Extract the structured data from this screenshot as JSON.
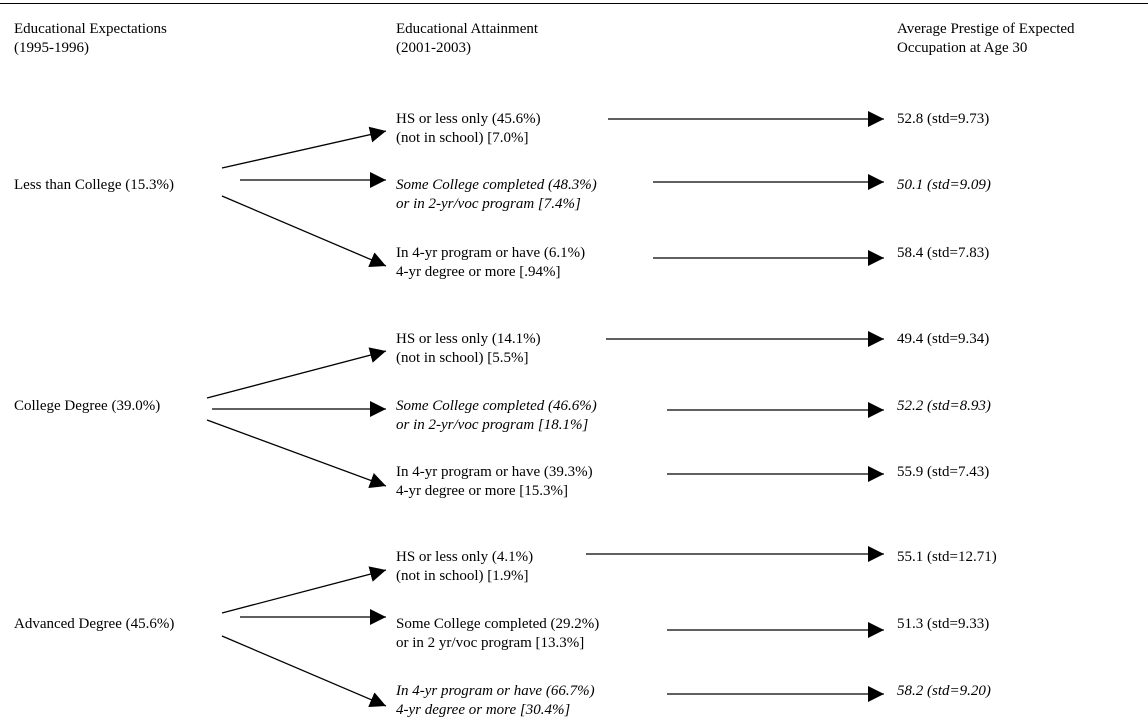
{
  "headers": {
    "col1": [
      "Educational Expectations",
      "(1995-1996)"
    ],
    "col2": [
      "Educational Attainment",
      "(2001-2003)"
    ],
    "col3": [
      "Average Prestige of Expected",
      "Occupation at Age 30"
    ]
  },
  "groups": [
    {
      "label": "Less than College (15.3%)",
      "branches": [
        {
          "line1": "HS or less only  (45.6%)",
          "line2": "(not in school)  [7.0%]",
          "result": "52.8 (std=9.73)",
          "italic": false
        },
        {
          "line1": "Some College completed (48.3%)",
          "line2": "or in 2-yr/voc program [7.4%]",
          "result": "50.1 (std=9.09)",
          "italic": true
        },
        {
          "line1": "In 4-yr program or have (6.1%)",
          "line2": "4-yr degree or more [.94%]",
          "result": "58.4 (std=7.83)",
          "italic": false
        }
      ]
    },
    {
      "label": "College Degree (39.0%)",
      "branches": [
        {
          "line1": "HS or less only  (14.1%)",
          "line2": "(not in school)  [5.5%]",
          "result": "49.4 (std=9.34)",
          "italic": false
        },
        {
          "line1": "Some College completed (46.6%)",
          "line2": "or in 2-yr/voc program [18.1%]",
          "result": "52.2 (std=8.93)",
          "italic": true
        },
        {
          "line1": "In 4-yr program or have (39.3%)",
          "line2": "4-yr degree or more [15.3%]",
          "result": "55.9 (std=7.43)",
          "italic": false
        }
      ]
    },
    {
      "label": "Advanced Degree (45.6%)",
      "branches": [
        {
          "line1": "HS or less only (4.1%)",
          "line2": "(not in school)  [1.9%]",
          "result": "55.1 (std=12.71)",
          "italic": false
        },
        {
          "line1": "Some College completed (29.2%)",
          "line2": "or in 2 yr/voc program [13.3%]",
          "result": "51.3 (std=9.33)",
          "italic": false
        },
        {
          "line1": "In 4-yr program or have (66.7%)",
          "line2": "4-yr degree or more [30.4%]",
          "result": "58.2 (std=9.20)",
          "italic": true
        }
      ]
    }
  ]
}
